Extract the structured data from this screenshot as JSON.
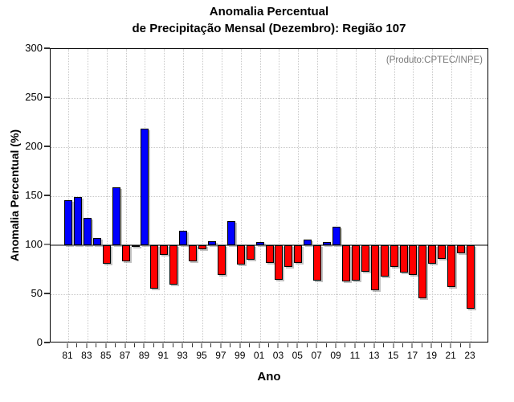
{
  "title": {
    "line1": "Anomalia Percentual",
    "line2": "de Precipitação Mensal (Dezembro): Região 107"
  },
  "annotation": "(Produto:CPTEC/INPE)",
  "axes": {
    "y_label": "Anomalia Percentual (%)",
    "x_label": "Ano",
    "y_ticks": [
      0,
      50,
      100,
      150,
      200,
      250,
      300
    ],
    "grid_y": [
      50,
      150,
      200,
      250
    ],
    "y_range": [
      0,
      300
    ],
    "x_tick_labels": [
      "81",
      "83",
      "85",
      "87",
      "89",
      "91",
      "93",
      "95",
      "97",
      "99",
      "01",
      "03",
      "05",
      "07",
      "09",
      "11",
      "13",
      "15",
      "17",
      "19",
      "21",
      "23"
    ]
  },
  "colors": {
    "above_baseline": "#0000ff",
    "below_baseline": "#ff0000",
    "baseline_line": "#808080",
    "grid": "#c9c9c9",
    "annotation_text": "#787878",
    "frame": "#000000"
  },
  "chart_data": {
    "type": "bar",
    "title": "Anomalia Percentual de Precipitação Mensal (Dezembro): Região 107",
    "xlabel": "Ano",
    "ylabel": "Anomalia Percentual (%)",
    "ylim": [
      0,
      300
    ],
    "baseline": 100,
    "grid": "dotted",
    "categories": [
      "81",
      "82",
      "83",
      "84",
      "85",
      "86",
      "87",
      "88",
      "89",
      "90",
      "91",
      "92",
      "93",
      "94",
      "95",
      "96",
      "97",
      "98",
      "99",
      "00",
      "01",
      "02",
      "03",
      "04",
      "05",
      "06",
      "07",
      "08",
      "09",
      "10",
      "11",
      "12",
      "13",
      "14",
      "15",
      "16",
      "17",
      "18",
      "19",
      "20",
      "21",
      "22",
      "23"
    ],
    "values": [
      146,
      149,
      128,
      107,
      81,
      159,
      84,
      99,
      219,
      56,
      90,
      60,
      115,
      84,
      96,
      104,
      70,
      125,
      80,
      85,
      103,
      82,
      65,
      78,
      82,
      106,
      64,
      103,
      119,
      63,
      64,
      73,
      54,
      68,
      78,
      72,
      70,
      46,
      81,
      86,
      57,
      92,
      35
    ],
    "color_rule": "blue if value >= 100 else red"
  }
}
